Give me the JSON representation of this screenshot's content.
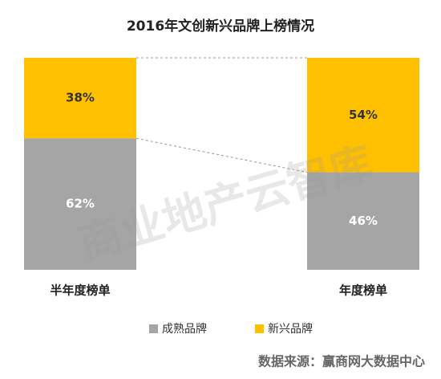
{
  "chart_data": {
    "type": "stacked_bar",
    "title": "2016年文创新兴品牌上榜情况",
    "categories": [
      "半年度榜单",
      "年度榜单"
    ],
    "series": [
      {
        "name": "成熟品牌",
        "color": "#a5a5a5",
        "values": [
          62,
          46
        ],
        "value_labels": [
          "62%",
          "46%"
        ]
      },
      {
        "name": "新兴品牌",
        "color": "#ffc000",
        "values": [
          38,
          54
        ],
        "value_labels": [
          "38%",
          "54%"
        ]
      }
    ],
    "watermark": "商业地产云智库",
    "source": "数据来源：赢商网大数据中心"
  }
}
